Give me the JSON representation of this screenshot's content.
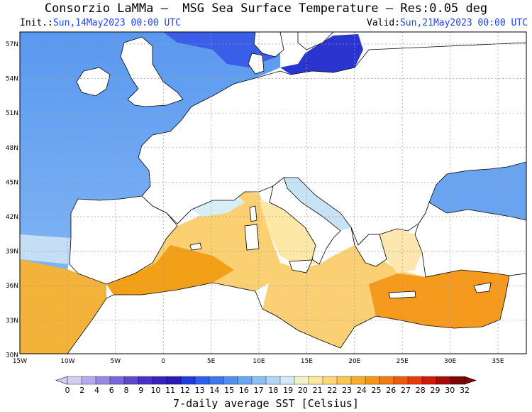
{
  "title": "Consorzio LaMMa –  MSG Sea Surface Temperature – Res:0.05 deg",
  "init": {
    "label": "Init.:",
    "value": "Sun,14May2023 00:00 UTC"
  },
  "valid": {
    "label": "Valid:",
    "value": "Sun,21May2023 00:00 UTC"
  },
  "axes": {
    "lon_ticks": [
      "15W",
      "10W",
      "5W",
      "0",
      "5E",
      "10E",
      "15E",
      "20E",
      "25E",
      "30E",
      "35E"
    ],
    "lat_ticks": [
      "57N",
      "54N",
      "51N",
      "48N",
      "45N",
      "42N",
      "39N",
      "36N",
      "33N",
      "30N"
    ]
  },
  "colorbar": {
    "labels": [
      "0",
      "2",
      "4",
      "6",
      "8",
      "9",
      "10",
      "11",
      "12",
      "13",
      "14",
      "15",
      "16",
      "17",
      "18",
      "19",
      "20",
      "21",
      "22",
      "23",
      "24",
      "25",
      "26",
      "27",
      "28",
      "29",
      "30",
      "32"
    ],
    "colors": [
      "#d6ccf2",
      "#b8a9ec",
      "#9a87e2",
      "#7d66d9",
      "#6047cf",
      "#4a30c8",
      "#3a20c2",
      "#2a1ab8",
      "#1f3be0",
      "#2a5ff0",
      "#3a78f2",
      "#4e8ff2",
      "#6aa6f2",
      "#8dbef5",
      "#b3d6f7",
      "#d4ebf7",
      "#f2f2c8",
      "#fde8a0",
      "#fdd77a",
      "#fcc552",
      "#f9ad28",
      "#f79514",
      "#f37a0c",
      "#ef5a08",
      "#e83a06",
      "#d11a06",
      "#a80a06",
      "#7d0505"
    ],
    "title": "7-daily average SST [Celsius]"
  }
}
